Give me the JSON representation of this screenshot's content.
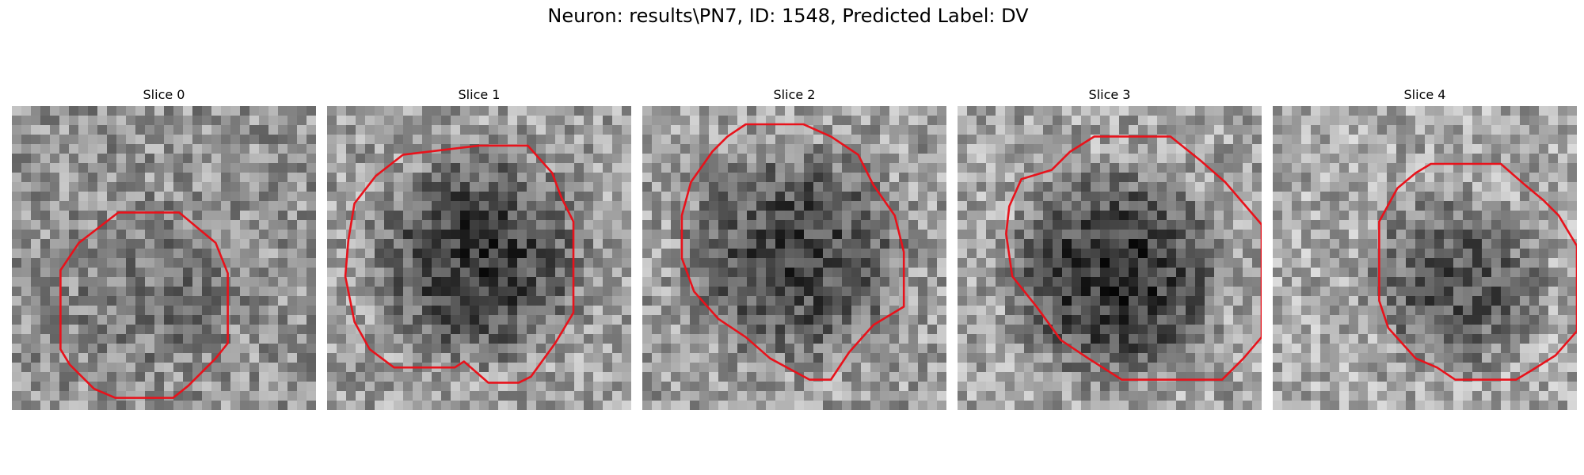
{
  "title": "Neuron: results\\PN7, ID: 1548, Predicted Label: DV",
  "contour_color": "#e8121b",
  "slices": [
    {
      "label": "Slice 0",
      "background_shade": 0.58,
      "center": [
        0.47,
        0.59
      ],
      "radius": 0.34,
      "dark_strength": 0.12,
      "seed": 11,
      "contour": [
        [
          0.35,
          0.35
        ],
        [
          0.55,
          0.35
        ],
        [
          0.67,
          0.45
        ],
        [
          0.71,
          0.55
        ],
        [
          0.71,
          0.78
        ],
        [
          0.67,
          0.83
        ],
        [
          0.58,
          0.92
        ],
        [
          0.53,
          0.96
        ],
        [
          0.34,
          0.96
        ],
        [
          0.27,
          0.93
        ],
        [
          0.19,
          0.85
        ],
        [
          0.16,
          0.8
        ],
        [
          0.16,
          0.54
        ],
        [
          0.22,
          0.45
        ]
      ]
    },
    {
      "label": "Slice 1",
      "background_shade": 0.62,
      "center": [
        0.5,
        0.5
      ],
      "radius": 0.4,
      "dark_strength": 0.4,
      "seed": 23,
      "contour": [
        [
          0.25,
          0.16
        ],
        [
          0.5,
          0.13
        ],
        [
          0.66,
          0.13
        ],
        [
          0.74,
          0.22
        ],
        [
          0.77,
          0.3
        ],
        [
          0.81,
          0.38
        ],
        [
          0.81,
          0.68
        ],
        [
          0.75,
          0.78
        ],
        [
          0.67,
          0.89
        ],
        [
          0.63,
          0.91
        ],
        [
          0.53,
          0.91
        ],
        [
          0.45,
          0.84
        ],
        [
          0.42,
          0.86
        ],
        [
          0.22,
          0.86
        ],
        [
          0.14,
          0.8
        ],
        [
          0.09,
          0.71
        ],
        [
          0.06,
          0.56
        ],
        [
          0.07,
          0.44
        ],
        [
          0.09,
          0.32
        ],
        [
          0.16,
          0.23
        ]
      ]
    },
    {
      "label": "Slice 2",
      "background_shade": 0.62,
      "center": [
        0.5,
        0.49
      ],
      "radius": 0.41,
      "dark_strength": 0.36,
      "seed": 37,
      "contour": [
        [
          0.34,
          0.06
        ],
        [
          0.53,
          0.06
        ],
        [
          0.62,
          0.1
        ],
        [
          0.71,
          0.16
        ],
        [
          0.76,
          0.26
        ],
        [
          0.83,
          0.36
        ],
        [
          0.86,
          0.48
        ],
        [
          0.86,
          0.66
        ],
        [
          0.76,
          0.72
        ],
        [
          0.68,
          0.81
        ],
        [
          0.62,
          0.9
        ],
        [
          0.55,
          0.9
        ],
        [
          0.42,
          0.83
        ],
        [
          0.34,
          0.76
        ],
        [
          0.25,
          0.7
        ],
        [
          0.17,
          0.61
        ],
        [
          0.13,
          0.5
        ],
        [
          0.13,
          0.36
        ],
        [
          0.16,
          0.25
        ],
        [
          0.23,
          0.15
        ],
        [
          0.28,
          0.1
        ]
      ]
    },
    {
      "label": "Slice 3",
      "background_shade": 0.64,
      "center": [
        0.52,
        0.56
      ],
      "radius": 0.4,
      "dark_strength": 0.46,
      "seed": 53,
      "contour": [
        [
          0.17,
          0.33
        ],
        [
          0.21,
          0.24
        ],
        [
          0.31,
          0.21
        ],
        [
          0.37,
          0.15
        ],
        [
          0.45,
          0.1
        ],
        [
          0.7,
          0.1
        ],
        [
          0.8,
          0.18
        ],
        [
          0.88,
          0.25
        ],
        [
          0.94,
          0.32
        ],
        [
          1.0,
          0.39
        ],
        [
          1.0,
          0.76
        ],
        [
          0.94,
          0.83
        ],
        [
          0.87,
          0.9
        ],
        [
          0.82,
          0.9
        ],
        [
          0.54,
          0.9
        ],
        [
          0.43,
          0.83
        ],
        [
          0.34,
          0.77
        ],
        [
          0.26,
          0.66
        ],
        [
          0.18,
          0.56
        ],
        [
          0.16,
          0.42
        ]
      ]
    },
    {
      "label": "Slice 4",
      "background_shade": 0.66,
      "center": [
        0.6,
        0.58
      ],
      "radius": 0.34,
      "dark_strength": 0.34,
      "seed": 71,
      "contour": [
        [
          0.41,
          0.27
        ],
        [
          0.47,
          0.22
        ],
        [
          0.52,
          0.19
        ],
        [
          0.75,
          0.19
        ],
        [
          0.83,
          0.26
        ],
        [
          0.89,
          0.31
        ],
        [
          0.94,
          0.36
        ],
        [
          1.0,
          0.46
        ],
        [
          1.0,
          0.74
        ],
        [
          0.93,
          0.82
        ],
        [
          0.85,
          0.87
        ],
        [
          0.8,
          0.9
        ],
        [
          0.6,
          0.9
        ],
        [
          0.54,
          0.86
        ],
        [
          0.47,
          0.83
        ],
        [
          0.38,
          0.73
        ],
        [
          0.35,
          0.64
        ],
        [
          0.35,
          0.38
        ]
      ]
    }
  ]
}
